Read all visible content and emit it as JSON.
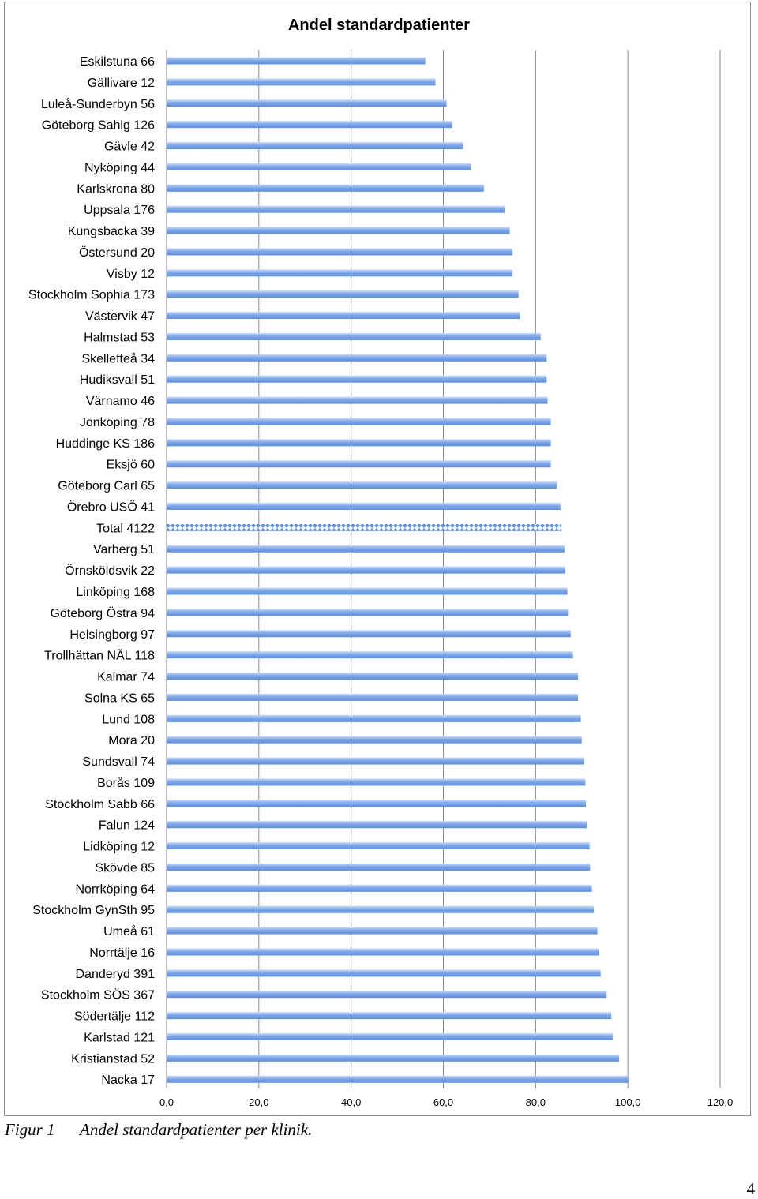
{
  "chart_data": {
    "type": "bar",
    "orientation": "horizontal",
    "title": "Andel standardpatienter",
    "xlim": [
      0,
      120
    ],
    "xticks": [
      0,
      20,
      40,
      60,
      80,
      100,
      120
    ],
    "xtick_labels": [
      "0,0",
      "20,0",
      "40,0",
      "60,0",
      "80,0",
      "100,0",
      "120,0"
    ],
    "grid": "vertical",
    "bar_color": "#6f9ee8",
    "highlight_category": "Total 4122",
    "categories": [
      "Eskilstuna 66",
      "Gällivare 12",
      "Luleå-Sunderbyn 56",
      "Göteborg Sahlg 126",
      "Gävle 42",
      "Nyköping 44",
      "Karlskrona 80",
      "Uppsala 176",
      "Kungsbacka 39",
      "Östersund 20",
      "Visby 12",
      "Stockholm Sophia 173",
      "Västervik 47",
      "Halmstad 53",
      "Skellefteå 34",
      "Hudiksvall 51",
      "Värnamo 46",
      "Jönköping 78",
      "Huddinge KS 186",
      "Eksjö 60",
      "Göteborg Carl 65",
      "Örebro USÖ 41",
      "Total 4122",
      "Varberg 51",
      "Örnsköldsvik 22",
      "Linköping 168",
      "Göteborg Östra 94",
      "Helsingborg 97",
      "Trollhättan NÄL 118",
      "Kalmar 74",
      "Solna KS 65",
      "Lund 108",
      "Mora 20",
      "Sundsvall 74",
      "Borås 109",
      "Stockholm Sabb 66",
      "Falun 124",
      "Lidköping 12",
      "Skövde 85",
      "Norrköping 64",
      "Stockholm GynSth 95",
      "Umeå 61",
      "Norrtälje 16",
      "Danderyd 391",
      "Stockholm SÖS 367",
      "Södertälje 112",
      "Karlstad 121",
      "Kristianstad 52",
      "Nacka 17"
    ],
    "values": [
      56.1,
      58.3,
      60.7,
      61.9,
      64.3,
      65.9,
      68.8,
      73.3,
      74.4,
      75.0,
      75.0,
      76.3,
      76.6,
      81.1,
      82.4,
      82.4,
      82.6,
      83.3,
      83.3,
      83.3,
      84.6,
      85.4,
      85.6,
      86.3,
      86.4,
      86.9,
      87.2,
      87.6,
      88.1,
      89.2,
      89.2,
      89.8,
      90.0,
      90.5,
      90.8,
      90.9,
      91.1,
      91.7,
      91.8,
      92.2,
      92.6,
      93.4,
      93.8,
      94.1,
      95.4,
      96.4,
      96.7,
      98.1,
      100.0
    ]
  },
  "caption": {
    "figure_number": "Figur 1",
    "text": "Andel standardpatienter per klinik."
  },
  "page_number": "4"
}
